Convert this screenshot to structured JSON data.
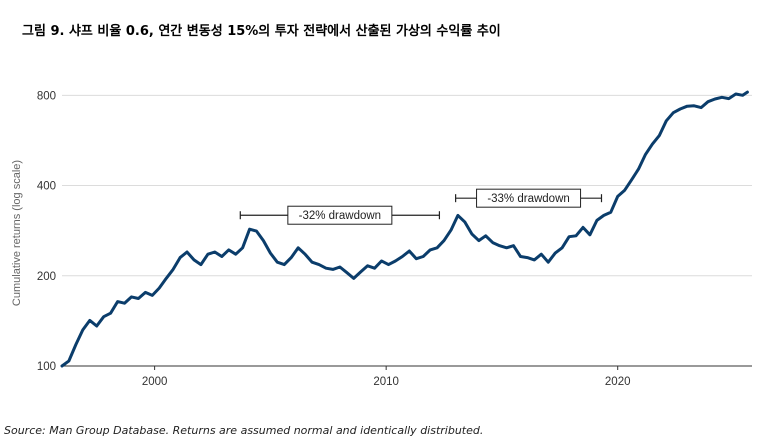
{
  "title": "그림 9. 샤프 비율 0.6, 연간 변동성 15%의 투자 전략에서 산출된 가상의 수익률 추이",
  "source": "Source: Man Group Database. Returns are assumed normal and identically distributed.",
  "chart_data": {
    "type": "line",
    "title": "그림 9. 샤프 비율 0.6, 연간 변동성 15%의 투자 전략에서 산출된 가상의 수익률 추이",
    "xlabel": "",
    "ylabel": "Cumulative returns (log scale)",
    "y_scale": "log",
    "ylim": [
      100,
      900
    ],
    "xlim": [
      1996.0,
      2025.8
    ],
    "y_ticks": [
      100,
      200,
      400,
      800
    ],
    "x_ticks": [
      2000,
      2010,
      2020
    ],
    "gridlines": true,
    "line_color": "#0b3d6b",
    "series": [
      {
        "name": "Cumulative returns",
        "x": [
          1996.0,
          1996.3,
          1996.6,
          1996.9,
          1997.2,
          1997.5,
          1997.8,
          1998.1,
          1998.4,
          1998.7,
          1999.0,
          1999.3,
          1999.6,
          1999.9,
          2000.2,
          2000.5,
          2000.8,
          2001.1,
          2001.4,
          2001.7,
          2002.0,
          2002.3,
          2002.6,
          2002.9,
          2003.2,
          2003.5,
          2003.8,
          2004.1,
          2004.4,
          2004.7,
          2005.0,
          2005.3,
          2005.6,
          2005.9,
          2006.2,
          2006.5,
          2006.8,
          2007.1,
          2007.4,
          2007.7,
          2008.0,
          2008.3,
          2008.6,
          2008.9,
          2009.2,
          2009.5,
          2009.8,
          2010.1,
          2010.4,
          2010.7,
          2011.0,
          2011.3,
          2011.6,
          2011.9,
          2012.2,
          2012.5,
          2012.8,
          2013.1,
          2013.4,
          2013.7,
          2014.0,
          2014.3,
          2014.6,
          2014.9,
          2015.2,
          2015.5,
          2015.8,
          2016.1,
          2016.4,
          2016.7,
          2017.0,
          2017.3,
          2017.6,
          2017.9,
          2018.2,
          2018.5,
          2018.8,
          2019.1,
          2019.4,
          2019.7,
          2020.0,
          2020.3,
          2020.6,
          2020.9,
          2021.2,
          2021.5,
          2021.8,
          2022.1,
          2022.4,
          2022.7,
          2023.0,
          2023.3,
          2023.6,
          2023.9,
          2024.2,
          2024.5,
          2024.8,
          2025.1,
          2025.4,
          2025.6
        ],
        "values": [
          100,
          104,
          118,
          132,
          142,
          136,
          146,
          150,
          164,
          162,
          170,
          168,
          176,
          172,
          182,
          196,
          210,
          230,
          240,
          226,
          218,
          236,
          240,
          232,
          244,
          236,
          248,
          286,
          282,
          262,
          238,
          222,
          218,
          230,
          248,
          236,
          222,
          218,
          212,
          210,
          214,
          205,
          196,
          206,
          216,
          212,
          224,
          218,
          224,
          232,
          242,
          228,
          232,
          244,
          248,
          262,
          284,
          318,
          302,
          276,
          262,
          272,
          258,
          252,
          248,
          252,
          232,
          230,
          226,
          236,
          222,
          238,
          248,
          270,
          272,
          290,
          274,
          306,
          318,
          326,
          368,
          386,
          418,
          454,
          508,
          550,
          588,
          658,
          700,
          720,
          736,
          738,
          728,
          762,
          778,
          788,
          780,
          808,
          800,
          820
        ]
      }
    ],
    "annotations": [
      {
        "text": "-32% drawdown",
        "x_start": 2003.7,
        "x_end": 2012.3
      },
      {
        "text": "-33% drawdown",
        "x_start": 2013.0,
        "x_end": 2019.3
      }
    ]
  }
}
